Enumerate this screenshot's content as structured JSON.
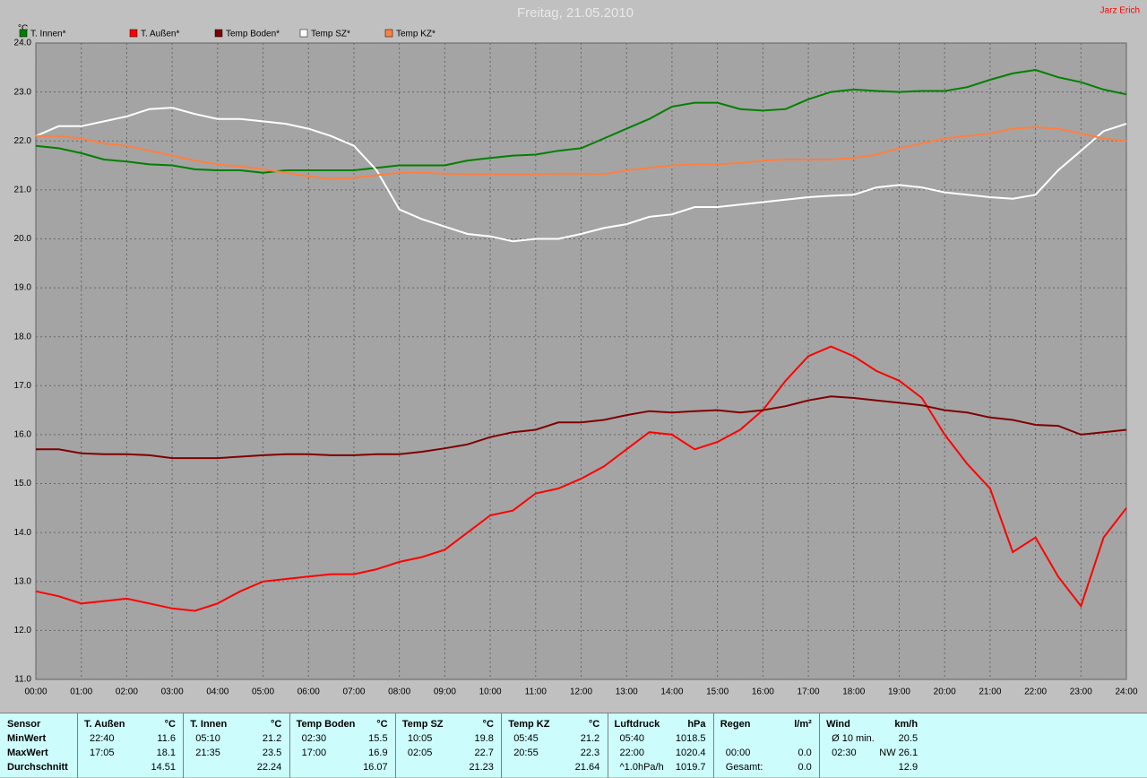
{
  "chart_data": {
    "type": "line",
    "title": "Freitag, 21.05.2010",
    "author": "Jarz Erich",
    "y_label": "°C",
    "ylim": [
      11,
      24
    ],
    "yticks": [
      {
        "value": 11,
        "label": "11.0"
      },
      {
        "value": 12,
        "label": "12.0"
      },
      {
        "value": 13,
        "label": "13.0"
      },
      {
        "value": 14,
        "label": "14.0"
      },
      {
        "value": 15,
        "label": "15.0"
      },
      {
        "value": 16,
        "label": "16.0"
      },
      {
        "value": 17,
        "label": "17.0"
      },
      {
        "value": 18,
        "label": "18.0"
      },
      {
        "value": 19,
        "label": "19.0"
      },
      {
        "value": 20,
        "label": "20.0"
      },
      {
        "value": 21,
        "label": "21.0"
      },
      {
        "value": 22,
        "label": "22.0"
      },
      {
        "value": 23,
        "label": "23.0"
      },
      {
        "value": 24,
        "label": "24.0"
      }
    ],
    "xlim": [
      0,
      24
    ],
    "xticks": [
      {
        "value": 0,
        "label": "00:00"
      },
      {
        "value": 1,
        "label": "01:00"
      },
      {
        "value": 2,
        "label": "02:00"
      },
      {
        "value": 3,
        "label": "03:00"
      },
      {
        "value": 4,
        "label": "04:00"
      },
      {
        "value": 5,
        "label": "05:00"
      },
      {
        "value": 6,
        "label": "06:00"
      },
      {
        "value": 7,
        "label": "07:00"
      },
      {
        "value": 8,
        "label": "08:00"
      },
      {
        "value": 9,
        "label": "09:00"
      },
      {
        "value": 10,
        "label": "10:00"
      },
      {
        "value": 11,
        "label": "11:00"
      },
      {
        "value": 12,
        "label": "12:00"
      },
      {
        "value": 13,
        "label": "13:00"
      },
      {
        "value": 14,
        "label": "14:00"
      },
      {
        "value": 15,
        "label": "15:00"
      },
      {
        "value": 16,
        "label": "16:00"
      },
      {
        "value": 17,
        "label": "17:00"
      },
      {
        "value": 18,
        "label": "18:00"
      },
      {
        "value": 19,
        "label": "19:00"
      },
      {
        "value": 20,
        "label": "20:00"
      },
      {
        "value": 21,
        "label": "21:00"
      },
      {
        "value": 22,
        "label": "22:00"
      },
      {
        "value": 23,
        "label": "23:00"
      },
      {
        "value": 24,
        "label": "24:00"
      }
    ],
    "grid": true,
    "x": [
      0,
      0.5,
      1,
      1.5,
      2,
      2.5,
      3,
      3.5,
      4,
      4.5,
      5,
      5.5,
      6,
      6.5,
      7,
      7.5,
      8,
      8.5,
      9,
      9.5,
      10,
      10.5,
      11,
      11.5,
      12,
      12.5,
      13,
      13.5,
      14,
      14.5,
      15,
      15.5,
      16,
      16.5,
      17,
      17.5,
      18,
      18.5,
      19,
      19.5,
      20,
      20.5,
      21,
      21.5,
      22,
      22.5,
      23,
      23.5,
      24
    ],
    "series": [
      {
        "name": "T. Innen*",
        "color": "#008000",
        "values": [
          21.9,
          21.85,
          21.75,
          21.62,
          21.58,
          21.52,
          21.5,
          21.42,
          21.4,
          21.4,
          21.35,
          21.4,
          21.4,
          21.4,
          21.4,
          21.45,
          21.5,
          21.5,
          21.5,
          21.6,
          21.65,
          21.7,
          21.72,
          21.8,
          21.85,
          22.05,
          22.25,
          22.45,
          22.7,
          22.78,
          22.78,
          22.65,
          22.62,
          22.65,
          22.85,
          23.0,
          23.05,
          23.02,
          23.0,
          23.02,
          23.02,
          23.1,
          23.25,
          23.38,
          23.45,
          23.3,
          23.2,
          23.05,
          22.95
        ]
      },
      {
        "name": "T. Außen*",
        "color": "#ff0000",
        "values": [
          12.8,
          12.7,
          12.55,
          12.6,
          12.65,
          12.55,
          12.45,
          12.4,
          12.55,
          12.8,
          13.0,
          13.05,
          13.1,
          13.15,
          13.15,
          13.25,
          13.4,
          13.5,
          13.65,
          14.0,
          14.35,
          14.45,
          14.8,
          14.9,
          15.1,
          15.35,
          15.7,
          16.05,
          16.0,
          15.7,
          15.85,
          16.1,
          16.5,
          17.1,
          17.6,
          17.8,
          17.6,
          17.3,
          17.1,
          16.75,
          16.0,
          15.4,
          14.9,
          13.6,
          13.9,
          13.1,
          12.5,
          13.9,
          14.5
        ]
      },
      {
        "name": "Temp Boden*",
        "color": "#800000",
        "values": [
          15.7,
          15.7,
          15.62,
          15.6,
          15.6,
          15.58,
          15.52,
          15.52,
          15.52,
          15.55,
          15.58,
          15.6,
          15.6,
          15.58,
          15.58,
          15.6,
          15.6,
          15.65,
          15.72,
          15.8,
          15.95,
          16.05,
          16.1,
          16.25,
          16.25,
          16.3,
          16.4,
          16.48,
          16.45,
          16.48,
          16.5,
          16.45,
          16.5,
          16.58,
          16.7,
          16.78,
          16.75,
          16.7,
          16.65,
          16.6,
          16.5,
          16.45,
          16.35,
          16.3,
          16.2,
          16.18,
          16.0,
          16.05,
          16.1
        ]
      },
      {
        "name": "Temp SZ*",
        "color": "#ffffff",
        "values": [
          22.1,
          22.3,
          22.3,
          22.4,
          22.5,
          22.65,
          22.68,
          22.55,
          22.45,
          22.45,
          22.4,
          22.35,
          22.25,
          22.1,
          21.9,
          21.4,
          20.6,
          20.4,
          20.25,
          20.1,
          20.05,
          19.95,
          20.0,
          20.0,
          20.1,
          20.22,
          20.3,
          20.45,
          20.5,
          20.65,
          20.65,
          20.7,
          20.75,
          20.8,
          20.85,
          20.88,
          20.9,
          21.05,
          21.1,
          21.05,
          20.95,
          20.9,
          20.85,
          20.82,
          20.9,
          21.4,
          21.8,
          22.2,
          22.35
        ]
      },
      {
        "name": "Temp KZ*",
        "color": "#ff8040",
        "values": [
          22.1,
          22.1,
          22.05,
          21.95,
          21.9,
          21.8,
          21.7,
          21.6,
          21.52,
          21.48,
          21.42,
          21.35,
          21.28,
          21.22,
          21.25,
          21.3,
          21.35,
          21.35,
          21.33,
          21.32,
          21.32,
          21.32,
          21.32,
          21.33,
          21.33,
          21.32,
          21.4,
          21.45,
          21.5,
          21.52,
          21.52,
          21.55,
          21.6,
          21.62,
          21.62,
          21.62,
          21.65,
          21.72,
          21.85,
          21.95,
          22.05,
          22.1,
          22.15,
          22.25,
          22.28,
          22.25,
          22.15,
          22.05,
          22.0
        ]
      }
    ]
  },
  "table": {
    "row_labels": [
      "Sensor",
      "MinWert",
      "MaxWert",
      "Durchschnitt"
    ],
    "columns": [
      {
        "header": "T. Außen",
        "unit": "°C",
        "rows": [
          [
            "22:40",
            "11.6"
          ],
          [
            "17:05",
            "18.1"
          ],
          [
            null,
            "14.51"
          ]
        ]
      },
      {
        "header": "T. Innen",
        "unit": "°C",
        "rows": [
          [
            "05:10",
            "21.2"
          ],
          [
            "21:35",
            "23.5"
          ],
          [
            null,
            "22.24"
          ]
        ]
      },
      {
        "header": "Temp Boden",
        "unit": "°C",
        "rows": [
          [
            "02:30",
            "15.5"
          ],
          [
            "17:00",
            "16.9"
          ],
          [
            null,
            "16.07"
          ]
        ]
      },
      {
        "header": "Temp SZ",
        "unit": "°C",
        "rows": [
          [
            "10:05",
            "19.8"
          ],
          [
            "02:05",
            "22.7"
          ],
          [
            null,
            "21.23"
          ]
        ]
      },
      {
        "header": "Temp KZ",
        "unit": "°C",
        "rows": [
          [
            "05:45",
            "21.2"
          ],
          [
            "20:55",
            "22.3"
          ],
          [
            null,
            "21.64"
          ]
        ]
      },
      {
        "header": "Luftdruck",
        "unit": "hPa",
        "rows": [
          [
            "05:40",
            "1018.5"
          ],
          [
            "22:00",
            "1020.4"
          ],
          [
            "^1.0hPa/h",
            "1019.7"
          ]
        ]
      },
      {
        "header": "Regen",
        "unit": "l/m²",
        "rows": [
          [
            null,
            null
          ],
          [
            "00:00",
            "0.0"
          ],
          [
            "Gesamt:",
            "0.0"
          ]
        ]
      },
      {
        "header": "Wind",
        "unit": "km/h",
        "rows": [
          [
            "Ø 10 min.",
            "20.5"
          ],
          [
            "02:30",
            "NW 26.1"
          ],
          [
            null,
            "12.9"
          ]
        ]
      }
    ]
  }
}
